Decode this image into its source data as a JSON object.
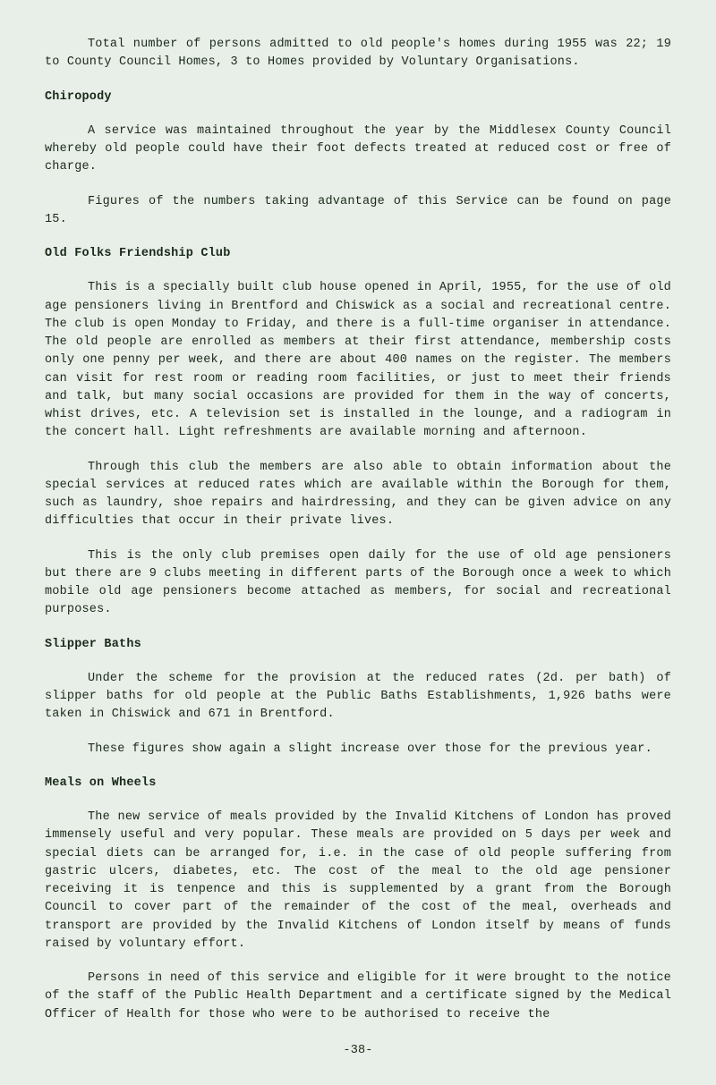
{
  "p1": "Total number of persons admitted to old people's homes during 1955 was 22; 19 to County Council Homes, 3 to Homes provided by Voluntary Organisations.",
  "h1": "Chiropody",
  "p2": "A service was maintained throughout the year by the Middlesex County Council whereby old people could have their foot defects treated at reduced cost or free of charge.",
  "p3": "Figures of the numbers taking advantage of this Service can be found on page 15.",
  "h2": "Old Folks Friendship Club",
  "p4": "This is a specially built club house opened in April, 1955, for the use of old age pensioners living in Brentford and Chiswick as a social and recreational centre. The club is open Monday to Friday, and there is a full-time organiser in attendance. The old people are enrolled as members at their first attendance, membership costs only one penny per week, and there are about 400 names on the register. The members can visit for rest room or reading room facilities, or just to meet their friends and talk, but many social occasions are provided for them in the way of concerts, whist drives, etc. A television set is installed in the lounge, and a radiogram in the concert hall. Light refreshments are available morning and afternoon.",
  "p5": "Through this club the members are also able to obtain information about the special services at reduced rates which are available within the Borough for them, such as laundry, shoe repairs and hairdressing, and they can be given advice on any difficulties that occur in their private lives.",
  "p6": "This is the only club premises open daily for the use of old age pensioners but there are 9 clubs meeting in different parts of the Borough once a week to which mobile old age pensioners become attached as members, for social and recreational purposes.",
  "h3": "Slipper Baths",
  "p7": "Under the scheme for the provision at the reduced rates (2d. per bath) of slipper baths for old people at the Public Baths Establishments, 1,926 baths were taken in Chiswick and 671 in Brentford.",
  "p8": "These figures show again a slight increase over those for the previous year.",
  "h4": "Meals on Wheels",
  "p9": "The new service of meals provided by the Invalid Kitchens of London has proved immensely useful and very popular. These meals are provided on 5 days per week and special diets can be arranged for, i.e. in the case of old people suffering from gastric ulcers, diabetes, etc. The cost of the meal to the old age pensioner receiving it is tenpence and this is supplemented by a grant from the Borough Council to cover part of the remainder of the cost of the meal, overheads and transport are provided by the Invalid Kitchens of London itself by means of funds raised by voluntary effort.",
  "p10": "Persons in need of this service and eligible for it were brought to the notice of the staff of the Public Health Department and a certificate signed by the Medical Officer of Health for those who were to be authorised to receive the",
  "pageNumber": "-38-"
}
